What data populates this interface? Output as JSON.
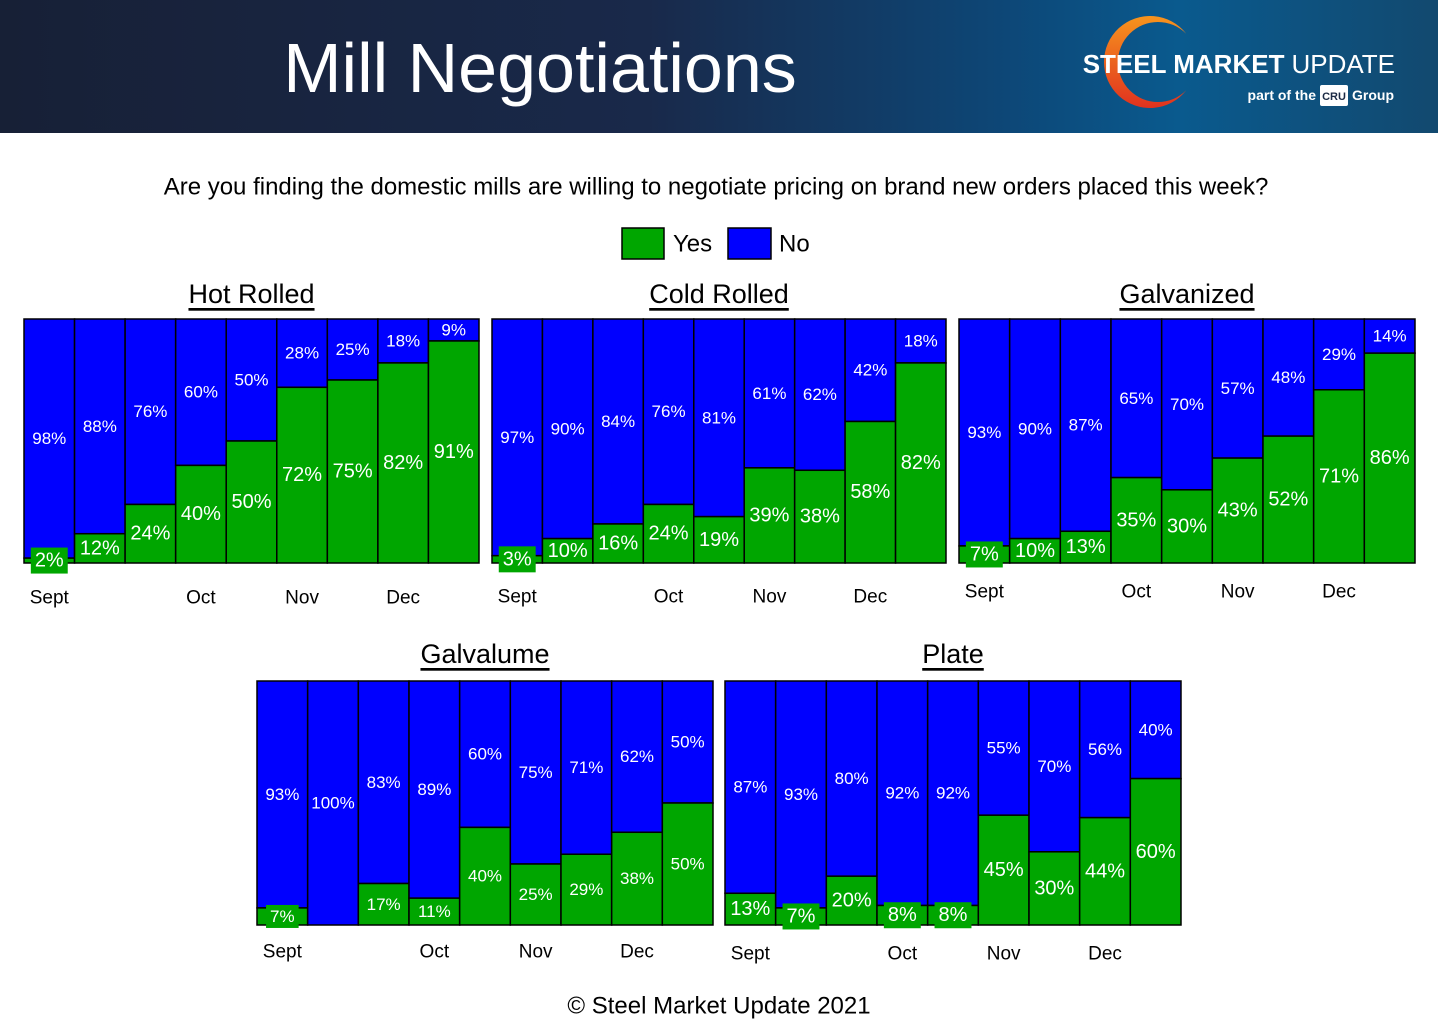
{
  "header": {
    "title": "Mill Negotiations"
  },
  "logo": {
    "brand_bold": "STEEL MARKET",
    "brand_light": "UPDATE",
    "tagline_prefix": "part of the",
    "tagline_badge": "CRU",
    "tagline_suffix": "Group"
  },
  "question": "Are you finding the domestic mills are willing to negotiate pricing on brand new orders placed this week?",
  "legend": {
    "yes_label": "Yes",
    "no_label": "No"
  },
  "footer": "© Steel Market Update 2021",
  "colors": {
    "yes": "#00a600",
    "no": "#0000ff",
    "logo_orange": "#f7941d",
    "logo_red": "#e0321f",
    "header_navy": "#172036",
    "header_blue": "#0a5a8e"
  },
  "chart_data": [
    {
      "type": "bar",
      "stacked": true,
      "title": "Hot Rolled",
      "categories": [
        "Sept",
        "",
        "",
        "Oct",
        "",
        "Nov",
        "",
        "Dec",
        ""
      ],
      "series": [
        {
          "name": "Yes",
          "values": [
            2,
            12,
            24,
            40,
            50,
            72,
            75,
            82,
            91
          ]
        },
        {
          "name": "No",
          "values": [
            98,
            88,
            76,
            60,
            50,
            28,
            25,
            18,
            9
          ]
        }
      ],
      "ylim": [
        0,
        100
      ],
      "value_suffix": "%"
    },
    {
      "type": "bar",
      "stacked": true,
      "title": "Cold Rolled",
      "categories": [
        "Sept",
        "",
        "",
        "Oct",
        "",
        "Nov",
        "",
        "Dec",
        ""
      ],
      "series": [
        {
          "name": "Yes",
          "values": [
            3,
            10,
            16,
            24,
            19,
            39,
            38,
            58,
            82
          ]
        },
        {
          "name": "No",
          "values": [
            97,
            90,
            84,
            76,
            81,
            61,
            62,
            42,
            18
          ]
        }
      ],
      "ylim": [
        0,
        100
      ],
      "value_suffix": "%"
    },
    {
      "type": "bar",
      "stacked": true,
      "title": "Galvanized",
      "categories": [
        "Sept",
        "",
        "",
        "Oct",
        "",
        "Nov",
        "",
        "Dec",
        ""
      ],
      "series": [
        {
          "name": "Yes",
          "values": [
            7,
            10,
            13,
            35,
            30,
            43,
            52,
            71,
            86
          ]
        },
        {
          "name": "No",
          "values": [
            93,
            90,
            87,
            65,
            70,
            57,
            48,
            29,
            14
          ]
        }
      ],
      "ylim": [
        0,
        100
      ],
      "value_suffix": "%"
    },
    {
      "type": "bar",
      "stacked": true,
      "title": "Galvalume",
      "categories": [
        "Sept",
        "",
        "",
        "Oct",
        "",
        "Nov",
        "",
        "Dec",
        ""
      ],
      "series": [
        {
          "name": "Yes",
          "values": [
            7,
            0,
            17,
            11,
            40,
            25,
            29,
            38,
            50
          ]
        },
        {
          "name": "No",
          "values": [
            93,
            100,
            83,
            89,
            60,
            75,
            71,
            62,
            50
          ]
        }
      ],
      "ylim": [
        0,
        100
      ],
      "value_suffix": "%"
    },
    {
      "type": "bar",
      "stacked": true,
      "title": "Plate",
      "categories": [
        "Sept",
        "",
        "",
        "Oct",
        "",
        "Nov",
        "",
        "Dec",
        ""
      ],
      "series": [
        {
          "name": "Yes",
          "values": [
            13,
            7,
            20,
            8,
            8,
            45,
            30,
            44,
            60
          ]
        },
        {
          "name": "No",
          "values": [
            87,
            93,
            80,
            92,
            92,
            55,
            70,
            56,
            40
          ]
        }
      ],
      "ylim": [
        0,
        100
      ],
      "value_suffix": "%"
    }
  ]
}
